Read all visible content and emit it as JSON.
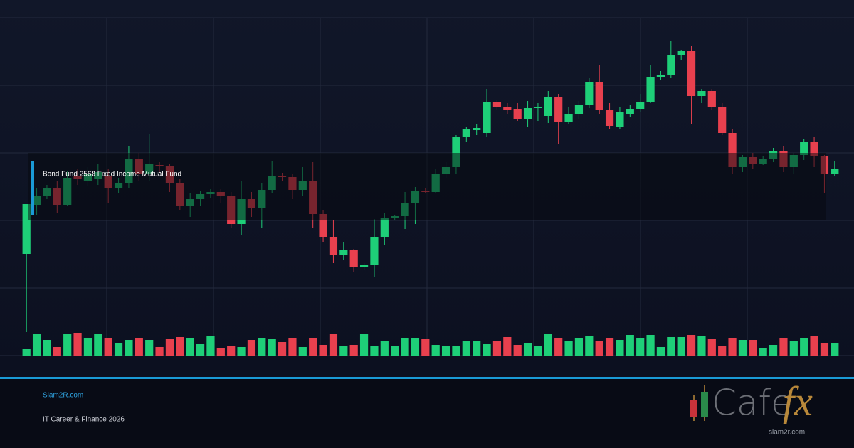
{
  "chart_data": {
    "type": "candlestick",
    "title": "Bond Fund 2568 Fixed Income Mutual Fund",
    "up_color": "#1ecf78",
    "down_color": "#e8404e",
    "ylim": [
      0,
      475
    ],
    "yticks": [
      0,
      95,
      190,
      285,
      380,
      475
    ],
    "grid": true,
    "volume_ylim": [
      0,
      100
    ],
    "open": [
      143,
      212,
      225,
      235,
      212,
      253,
      245,
      248,
      252,
      235,
      242,
      277,
      255,
      268,
      266,
      243,
      210,
      220,
      227,
      230,
      224,
      185,
      220,
      208,
      233,
      253,
      251,
      233,
      246,
      199,
      167,
      141,
      148,
      125,
      127,
      167,
      193,
      196,
      215,
      232,
      230,
      255,
      265,
      307,
      317,
      313,
      357,
      350,
      347,
      333,
      348,
      337,
      363,
      328,
      340,
      353,
      384,
      345,
      322,
      340,
      347,
      357,
      392,
      394,
      423,
      428,
      365,
      372,
      350,
      313,
      265,
      279,
      270,
      276,
      287,
      265,
      282,
      300,
      280,
      255
    ],
    "high": [
      213,
      235,
      240,
      245,
      260,
      262,
      265,
      270,
      262,
      250,
      295,
      285,
      312,
      272,
      270,
      248,
      228,
      232,
      234,
      234,
      230,
      245,
      230,
      243,
      273,
      257,
      255,
      265,
      272,
      205,
      190,
      160,
      150,
      130,
      192,
      200,
      198,
      230,
      237,
      235,
      262,
      272,
      310,
      322,
      325,
      375,
      360,
      355,
      355,
      358,
      355,
      372,
      368,
      350,
      358,
      390,
      408,
      355,
      350,
      352,
      368,
      408,
      400,
      443,
      430,
      435,
      375,
      375,
      355,
      318,
      282,
      285,
      280,
      292,
      295,
      285,
      305,
      307,
      282,
      273
    ],
    "low": [
      33,
      198,
      220,
      200,
      210,
      240,
      238,
      240,
      215,
      228,
      235,
      245,
      245,
      258,
      230,
      205,
      195,
      210,
      222,
      215,
      180,
      170,
      195,
      180,
      228,
      245,
      220,
      225,
      180,
      160,
      130,
      135,
      118,
      120,
      110,
      155,
      190,
      178,
      185,
      228,
      228,
      250,
      255,
      300,
      310,
      308,
      345,
      340,
      330,
      322,
      330,
      327,
      297,
      325,
      332,
      348,
      340,
      318,
      318,
      336,
      342,
      355,
      388,
      390,
      415,
      325,
      355,
      345,
      310,
      255,
      258,
      262,
      268,
      272,
      258,
      255,
      275,
      265,
      228,
      252
    ],
    "close": [
      213,
      225,
      235,
      212,
      250,
      248,
      255,
      258,
      235,
      242,
      277,
      255,
      270,
      266,
      243,
      210,
      220,
      227,
      230,
      224,
      185,
      220,
      208,
      233,
      253,
      251,
      233,
      246,
      199,
      167,
      141,
      148,
      125,
      128,
      167,
      193,
      196,
      215,
      232,
      230,
      255,
      265,
      307,
      318,
      320,
      357,
      350,
      346,
      333,
      348,
      350,
      363,
      328,
      340,
      353,
      384,
      345,
      323,
      342,
      347,
      357,
      392,
      395,
      423,
      428,
      365,
      372,
      350,
      313,
      265,
      279,
      270,
      276,
      287,
      265,
      282,
      300,
      280,
      255,
      263
    ],
    "volume": [
      9,
      30,
      22,
      12,
      31,
      32,
      25,
      31,
      24,
      17,
      22,
      25,
      22,
      12,
      23,
      26,
      25,
      16,
      27,
      11,
      14,
      12,
      22,
      24,
      23,
      19,
      24,
      12,
      25,
      15,
      31,
      13,
      15,
      31,
      14,
      20,
      13,
      25,
      25,
      23,
      15,
      13,
      14,
      20,
      20,
      16,
      21,
      26,
      15,
      18,
      14,
      31,
      25,
      20,
      25,
      28,
      21,
      24,
      22,
      29,
      24,
      29,
      12,
      26,
      26,
      29,
      27,
      23,
      14,
      24,
      22,
      22,
      11,
      15,
      25,
      20,
      25,
      28,
      18,
      17
    ]
  },
  "footer": {
    "site": "Siam2R.com",
    "caption": "IT Career & Finance 2026"
  },
  "logo": {
    "word": "Cafe",
    "fx": "fx",
    "url": "siam2r.com"
  }
}
